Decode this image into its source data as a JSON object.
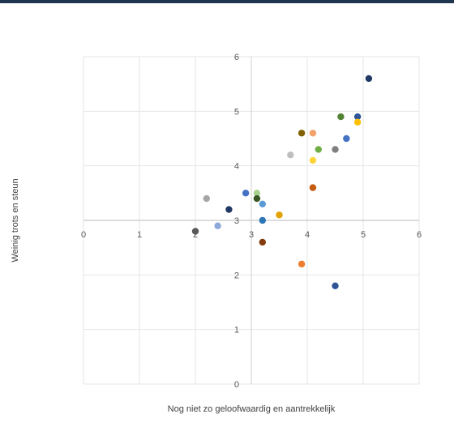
{
  "theme": {
    "top_bar_color": "#1f3550",
    "grid_color": "#e6e6e6",
    "axis_color": "#d0d0d0"
  },
  "chart_data": {
    "type": "scatter",
    "xlabel": "Nog niet zo geloofwaardig en aantrekkelijk",
    "ylabel": "Weinig trots en steun",
    "xlim": [
      0,
      6
    ],
    "ylim": [
      0,
      6
    ],
    "x_crosses_y_at": 3,
    "grid": true,
    "x_ticks": [
      "0",
      "1",
      "2",
      "3",
      "4",
      "5",
      "6"
    ],
    "y_ticks": [
      "0",
      "1",
      "2",
      "3",
      "4",
      "5",
      "6"
    ],
    "points": [
      {
        "x": 5.1,
        "y": 5.6,
        "color": "#1f3864"
      },
      {
        "x": 4.6,
        "y": 4.9,
        "color": "#548235"
      },
      {
        "x": 4.9,
        "y": 4.9,
        "color": "#2e5597"
      },
      {
        "x": 4.9,
        "y": 4.8,
        "color": "#ffc000"
      },
      {
        "x": 4.7,
        "y": 4.5,
        "color": "#4472c4"
      },
      {
        "x": 3.9,
        "y": 4.6,
        "color": "#806000"
      },
      {
        "x": 4.1,
        "y": 4.6,
        "color": "#f4a16b"
      },
      {
        "x": 4.5,
        "y": 4.3,
        "color": "#7f7f7f"
      },
      {
        "x": 4.2,
        "y": 4.3,
        "color": "#70ad47"
      },
      {
        "x": 3.7,
        "y": 4.2,
        "color": "#bfbfbf"
      },
      {
        "x": 4.1,
        "y": 4.1,
        "color": "#ffd43b"
      },
      {
        "x": 4.1,
        "y": 3.6,
        "color": "#c55a11"
      },
      {
        "x": 2.9,
        "y": 3.5,
        "color": "#4472c4"
      },
      {
        "x": 3.1,
        "y": 3.5,
        "color": "#a9d18e"
      },
      {
        "x": 2.2,
        "y": 3.4,
        "color": "#a6a6a6"
      },
      {
        "x": 3.1,
        "y": 3.4,
        "color": "#375623"
      },
      {
        "x": 3.2,
        "y": 3.3,
        "color": "#5b9bd5"
      },
      {
        "x": 2.6,
        "y": 3.2,
        "color": "#203864"
      },
      {
        "x": 3.5,
        "y": 3.1,
        "color": "#e2a200"
      },
      {
        "x": 3.2,
        "y": 3.0,
        "color": "#2e75b6"
      },
      {
        "x": 2.4,
        "y": 2.9,
        "color": "#8eaadb"
      },
      {
        "x": 2.0,
        "y": 2.8,
        "color": "#595959"
      },
      {
        "x": 3.2,
        "y": 2.6,
        "color": "#843c0c"
      },
      {
        "x": 3.9,
        "y": 2.2,
        "color": "#ed7d31"
      },
      {
        "x": 4.5,
        "y": 1.8,
        "color": "#2f5597"
      }
    ]
  }
}
